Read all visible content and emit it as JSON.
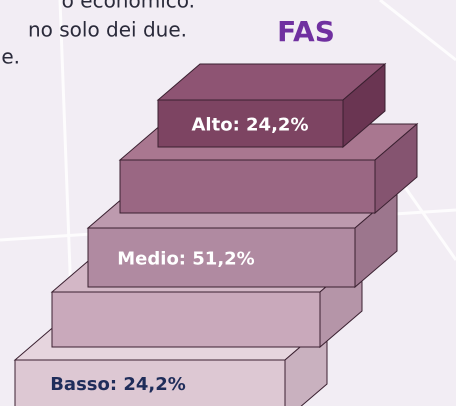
{
  "text_lines": [
    "o economico.",
    "no solo dei due.",
    "e."
  ],
  "title": "FAS",
  "steps": [
    {
      "label": "Alto: 24,2%"
    },
    {
      "label": null
    },
    {
      "label": "Medio: 51,2%"
    },
    {
      "label": null
    },
    {
      "label": "Basso: 24,2%"
    }
  ]
}
